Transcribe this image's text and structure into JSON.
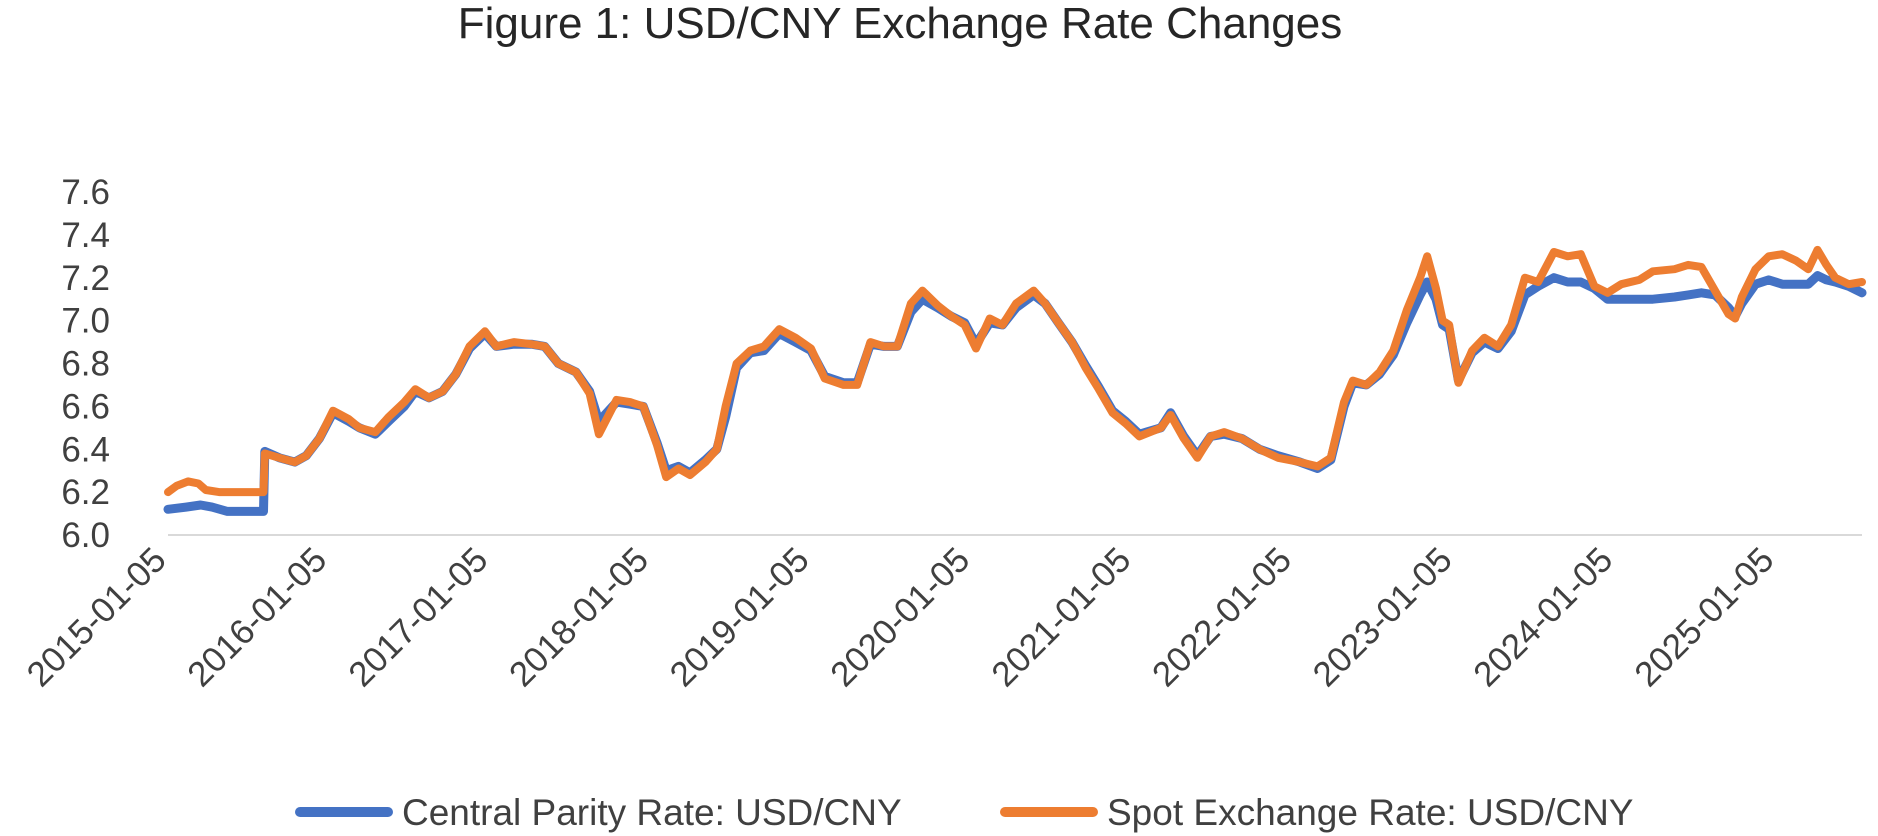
{
  "chart_data": {
    "type": "line",
    "title": "Figure 1: USD/CNY Exchange Rate Changes",
    "xlabel": "",
    "ylabel": "",
    "ylim": [
      6.0,
      7.6
    ],
    "xlim": [
      "2015-01-05",
      "2025-07-20"
    ],
    "yticks": [
      "6.0",
      "6.2",
      "6.4",
      "6.6",
      "6.8",
      "7.0",
      "7.2",
      "7.4",
      "7.6"
    ],
    "xticks": [
      "2015-01-05",
      "2016-01-05",
      "2017-01-05",
      "2018-01-05",
      "2019-01-05",
      "2020-01-05",
      "2021-01-05",
      "2022-01-05",
      "2023-01-05",
      "2024-01-05",
      "2025-01-05"
    ],
    "grid": false,
    "legend_position": "bottom",
    "series": [
      {
        "name": "Central Parity Rate: USD/CNY",
        "color": "#4472C4",
        "points": [
          [
            "2015-01-05",
            6.12
          ],
          [
            "2015-02-15",
            6.13
          ],
          [
            "2015-03-20",
            6.14
          ],
          [
            "2015-04-15",
            6.13
          ],
          [
            "2015-05-20",
            6.11
          ],
          [
            "2015-06-20",
            6.11
          ],
          [
            "2015-08-10",
            6.11
          ],
          [
            "2015-08-13",
            6.39
          ],
          [
            "2015-09-15",
            6.36
          ],
          [
            "2015-10-20",
            6.34
          ],
          [
            "2015-11-15",
            6.37
          ],
          [
            "2015-12-15",
            6.45
          ],
          [
            "2016-01-15",
            6.57
          ],
          [
            "2016-02-20",
            6.53
          ],
          [
            "2016-03-15",
            6.5
          ],
          [
            "2016-04-20",
            6.47
          ],
          [
            "2016-05-20",
            6.53
          ],
          [
            "2016-06-25",
            6.6
          ],
          [
            "2016-07-20",
            6.67
          ],
          [
            "2016-08-20",
            6.64
          ],
          [
            "2016-09-20",
            6.67
          ],
          [
            "2016-10-20",
            6.75
          ],
          [
            "2016-11-20",
            6.87
          ],
          [
            "2016-12-25",
            6.94
          ],
          [
            "2017-01-20",
            6.88
          ],
          [
            "2017-03-01",
            6.89
          ],
          [
            "2017-04-10",
            6.89
          ],
          [
            "2017-05-10",
            6.88
          ],
          [
            "2017-06-10",
            6.8
          ],
          [
            "2017-07-20",
            6.76
          ],
          [
            "2017-08-20",
            6.67
          ],
          [
            "2017-09-10",
            6.53
          ],
          [
            "2017-10-20",
            6.62
          ],
          [
            "2017-11-20",
            6.61
          ],
          [
            "2017-12-20",
            6.6
          ],
          [
            "2018-01-20",
            6.43
          ],
          [
            "2018-02-10",
            6.3
          ],
          [
            "2018-03-10",
            6.32
          ],
          [
            "2018-04-05",
            6.29
          ],
          [
            "2018-05-10",
            6.35
          ],
          [
            "2018-06-05",
            6.4
          ],
          [
            "2018-06-25",
            6.55
          ],
          [
            "2018-07-20",
            6.78
          ],
          [
            "2018-08-20",
            6.85
          ],
          [
            "2018-09-20",
            6.86
          ],
          [
            "2018-10-25",
            6.94
          ],
          [
            "2018-12-01",
            6.9
          ],
          [
            "2019-01-05",
            6.86
          ],
          [
            "2019-02-05",
            6.74
          ],
          [
            "2019-03-20",
            6.71
          ],
          [
            "2019-04-20",
            6.71
          ],
          [
            "2019-05-20",
            6.89
          ],
          [
            "2019-06-20",
            6.88
          ],
          [
            "2019-07-20",
            6.88
          ],
          [
            "2019-08-20",
            7.04
          ],
          [
            "2019-09-15",
            7.1
          ],
          [
            "2019-10-20",
            7.06
          ],
          [
            "2019-11-20",
            7.02
          ],
          [
            "2019-12-20",
            6.99
          ],
          [
            "2020-01-15",
            6.89
          ],
          [
            "2020-02-15",
            6.99
          ],
          [
            "2020-03-15",
            6.98
          ],
          [
            "2020-04-15",
            7.06
          ],
          [
            "2020-05-25",
            7.12
          ],
          [
            "2020-06-20",
            7.08
          ],
          [
            "2020-07-20",
            6.99
          ],
          [
            "2020-08-20",
            6.9
          ],
          [
            "2020-09-20",
            6.79
          ],
          [
            "2020-10-20",
            6.69
          ],
          [
            "2020-11-20",
            6.58
          ],
          [
            "2020-12-20",
            6.53
          ],
          [
            "2021-01-20",
            6.47
          ],
          [
            "2021-03-10",
            6.5
          ],
          [
            "2021-04-01",
            6.57
          ],
          [
            "2021-05-01",
            6.46
          ],
          [
            "2021-06-01",
            6.37
          ],
          [
            "2021-07-01",
            6.46
          ],
          [
            "2021-08-01",
            6.47
          ],
          [
            "2021-09-10",
            6.45
          ],
          [
            "2021-10-20",
            6.4
          ],
          [
            "2021-12-01",
            6.37
          ],
          [
            "2022-01-20",
            6.34
          ],
          [
            "2022-03-01",
            6.31
          ],
          [
            "2022-03-31",
            6.35
          ],
          [
            "2022-04-30",
            6.6
          ],
          [
            "2022-05-20",
            6.71
          ],
          [
            "2022-06-20",
            6.7
          ],
          [
            "2022-07-20",
            6.75
          ],
          [
            "2022-08-20",
            6.84
          ],
          [
            "2022-09-20",
            6.99
          ],
          [
            "2022-10-20",
            7.12
          ],
          [
            "2022-11-05",
            7.18
          ],
          [
            "2022-11-25",
            7.1
          ],
          [
            "2022-12-10",
            6.98
          ],
          [
            "2022-12-25",
            6.96
          ],
          [
            "2023-01-15",
            6.72
          ],
          [
            "2023-02-15",
            6.85
          ],
          [
            "2023-03-15",
            6.9
          ],
          [
            "2023-04-15",
            6.87
          ],
          [
            "2023-05-15",
            6.95
          ],
          [
            "2023-06-15",
            7.12
          ],
          [
            "2023-07-15",
            7.16
          ],
          [
            "2023-08-20",
            7.2
          ],
          [
            "2023-09-20",
            7.18
          ],
          [
            "2023-10-20",
            7.18
          ],
          [
            "2023-11-20",
            7.15
          ],
          [
            "2023-12-20",
            7.1
          ],
          [
            "2024-01-20",
            7.1
          ],
          [
            "2024-03-01",
            7.1
          ],
          [
            "2024-04-01",
            7.1
          ],
          [
            "2024-05-20",
            7.11
          ],
          [
            "2024-06-20",
            7.12
          ],
          [
            "2024-07-20",
            7.13
          ],
          [
            "2024-08-20",
            7.12
          ],
          [
            "2024-09-20",
            7.06
          ],
          [
            "2024-10-05",
            7.02
          ],
          [
            "2024-10-20",
            7.08
          ],
          [
            "2024-11-20",
            7.17
          ],
          [
            "2024-12-20",
            7.19
          ],
          [
            "2025-01-20",
            7.17
          ],
          [
            "2025-02-20",
            7.17
          ],
          [
            "2025-03-20",
            7.17
          ],
          [
            "2025-04-10",
            7.21
          ],
          [
            "2025-04-30",
            7.19
          ],
          [
            "2025-05-20",
            7.18
          ],
          [
            "2025-06-20",
            7.16
          ],
          [
            "2025-07-20",
            7.13
          ]
        ]
      },
      {
        "name": "Spot Exchange Rate: USD/CNY",
        "color": "#ED7D31",
        "points": [
          [
            "2015-01-05",
            6.2
          ],
          [
            "2015-01-25",
            6.23
          ],
          [
            "2015-02-20",
            6.25
          ],
          [
            "2015-03-15",
            6.24
          ],
          [
            "2015-04-01",
            6.21
          ],
          [
            "2015-05-01",
            6.2
          ],
          [
            "2015-06-15",
            6.2
          ],
          [
            "2015-08-10",
            6.2
          ],
          [
            "2015-08-13",
            6.38
          ],
          [
            "2015-09-15",
            6.36
          ],
          [
            "2015-10-20",
            6.34
          ],
          [
            "2015-11-15",
            6.37
          ],
          [
            "2015-12-15",
            6.45
          ],
          [
            "2016-01-15",
            6.58
          ],
          [
            "2016-02-20",
            6.54
          ],
          [
            "2016-03-15",
            6.5
          ],
          [
            "2016-04-20",
            6.48
          ],
          [
            "2016-05-20",
            6.55
          ],
          [
            "2016-06-25",
            6.62
          ],
          [
            "2016-07-20",
            6.68
          ],
          [
            "2016-08-20",
            6.64
          ],
          [
            "2016-09-20",
            6.67
          ],
          [
            "2016-10-20",
            6.75
          ],
          [
            "2016-11-20",
            6.88
          ],
          [
            "2016-12-25",
            6.95
          ],
          [
            "2017-01-20",
            6.88
          ],
          [
            "2017-03-01",
            6.9
          ],
          [
            "2017-04-10",
            6.89
          ],
          [
            "2017-05-10",
            6.88
          ],
          [
            "2017-06-10",
            6.8
          ],
          [
            "2017-07-20",
            6.76
          ],
          [
            "2017-08-20",
            6.66
          ],
          [
            "2017-09-10",
            6.47
          ],
          [
            "2017-10-20",
            6.63
          ],
          [
            "2017-11-20",
            6.62
          ],
          [
            "2017-12-20",
            6.6
          ],
          [
            "2018-01-20",
            6.42
          ],
          [
            "2018-02-10",
            6.27
          ],
          [
            "2018-03-10",
            6.31
          ],
          [
            "2018-04-05",
            6.28
          ],
          [
            "2018-05-10",
            6.34
          ],
          [
            "2018-06-05",
            6.4
          ],
          [
            "2018-06-25",
            6.6
          ],
          [
            "2018-07-20",
            6.8
          ],
          [
            "2018-08-20",
            6.86
          ],
          [
            "2018-09-20",
            6.88
          ],
          [
            "2018-10-25",
            6.96
          ],
          [
            "2018-12-01",
            6.92
          ],
          [
            "2019-01-05",
            6.87
          ],
          [
            "2019-02-05",
            6.73
          ],
          [
            "2019-03-20",
            6.7
          ],
          [
            "2019-04-20",
            6.7
          ],
          [
            "2019-05-20",
            6.9
          ],
          [
            "2019-06-20",
            6.88
          ],
          [
            "2019-07-20",
            6.88
          ],
          [
            "2019-08-20",
            7.08
          ],
          [
            "2019-09-15",
            7.14
          ],
          [
            "2019-10-20",
            7.07
          ],
          [
            "2019-11-20",
            7.02
          ],
          [
            "2019-12-20",
            6.98
          ],
          [
            "2020-01-15",
            6.87
          ],
          [
            "2020-02-15",
            7.01
          ],
          [
            "2020-03-15",
            6.98
          ],
          [
            "2020-04-15",
            7.08
          ],
          [
            "2020-05-25",
            7.14
          ],
          [
            "2020-06-20",
            7.08
          ],
          [
            "2020-07-20",
            6.99
          ],
          [
            "2020-08-20",
            6.9
          ],
          [
            "2020-09-20",
            6.78
          ],
          [
            "2020-10-20",
            6.68
          ],
          [
            "2020-11-20",
            6.57
          ],
          [
            "2020-12-20",
            6.52
          ],
          [
            "2021-01-20",
            6.46
          ],
          [
            "2021-03-10",
            6.5
          ],
          [
            "2021-04-01",
            6.56
          ],
          [
            "2021-05-01",
            6.45
          ],
          [
            "2021-06-01",
            6.36
          ],
          [
            "2021-07-01",
            6.46
          ],
          [
            "2021-08-01",
            6.48
          ],
          [
            "2021-09-10",
            6.45
          ],
          [
            "2021-10-20",
            6.4
          ],
          [
            "2021-12-01",
            6.36
          ],
          [
            "2022-01-20",
            6.34
          ],
          [
            "2022-03-01",
            6.32
          ],
          [
            "2022-03-31",
            6.36
          ],
          [
            "2022-04-30",
            6.62
          ],
          [
            "2022-05-20",
            6.72
          ],
          [
            "2022-06-20",
            6.7
          ],
          [
            "2022-07-20",
            6.76
          ],
          [
            "2022-08-20",
            6.86
          ],
          [
            "2022-09-20",
            7.05
          ],
          [
            "2022-10-20",
            7.2
          ],
          [
            "2022-11-05",
            7.3
          ],
          [
            "2022-11-25",
            7.15
          ],
          [
            "2022-12-10",
            7.0
          ],
          [
            "2022-12-25",
            6.98
          ],
          [
            "2023-01-15",
            6.71
          ],
          [
            "2023-02-15",
            6.86
          ],
          [
            "2023-03-15",
            6.92
          ],
          [
            "2023-04-15",
            6.88
          ],
          [
            "2023-05-15",
            6.98
          ],
          [
            "2023-06-15",
            7.2
          ],
          [
            "2023-07-15",
            7.18
          ],
          [
            "2023-08-20",
            7.32
          ],
          [
            "2023-09-20",
            7.3
          ],
          [
            "2023-10-20",
            7.31
          ],
          [
            "2023-11-20",
            7.16
          ],
          [
            "2023-12-20",
            7.13
          ],
          [
            "2024-01-20",
            7.17
          ],
          [
            "2024-03-01",
            7.19
          ],
          [
            "2024-04-01",
            7.23
          ],
          [
            "2024-05-20",
            7.24
          ],
          [
            "2024-06-20",
            7.26
          ],
          [
            "2024-07-20",
            7.25
          ],
          [
            "2024-08-20",
            7.14
          ],
          [
            "2024-09-20",
            7.03
          ],
          [
            "2024-10-05",
            7.01
          ],
          [
            "2024-10-20",
            7.11
          ],
          [
            "2024-11-20",
            7.24
          ],
          [
            "2024-12-20",
            7.3
          ],
          [
            "2025-01-20",
            7.31
          ],
          [
            "2025-02-20",
            7.28
          ],
          [
            "2025-03-20",
            7.24
          ],
          [
            "2025-04-10",
            7.33
          ],
          [
            "2025-04-30",
            7.26
          ],
          [
            "2025-05-20",
            7.2
          ],
          [
            "2025-06-20",
            7.17
          ],
          [
            "2025-07-20",
            7.18
          ]
        ]
      }
    ]
  }
}
